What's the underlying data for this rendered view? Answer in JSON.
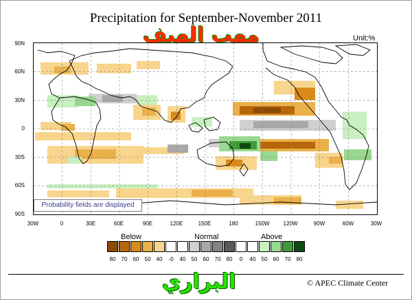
{
  "title": "Precipitation for September-November 2011",
  "unit": "Unit:%",
  "watermark_top": "مهب الهيف",
  "watermark_bottom": "البراري",
  "caption": "Probability fields are displayed",
  "credit": "© APEC Climate Center",
  "lat_labels": [
    "90N",
    "60N",
    "30N",
    "0",
    "30S",
    "60S",
    "90S"
  ],
  "lon_labels": [
    "30W",
    "0",
    "30E",
    "60E",
    "90E",
    "120E",
    "150E",
    "180",
    "150W",
    "120W",
    "90W",
    "60W",
    "30W"
  ],
  "legend": {
    "groups": [
      "Below",
      "Normal",
      "Above"
    ],
    "boxes": [
      {
        "label": "80",
        "color": "#8c4a05"
      },
      {
        "label": "70",
        "color": "#b8660a"
      },
      {
        "label": "60",
        "color": "#d88a1a"
      },
      {
        "label": "50",
        "color": "#eab04a"
      },
      {
        "label": "40",
        "color": "#f8d58c"
      },
      {
        "label": "-0",
        "color": "#ffffff"
      },
      {
        "label": "40",
        "color": "#ffffff"
      },
      {
        "label": "50",
        "color": "#d0d0d0"
      },
      {
        "label": "60",
        "color": "#a8a8a8"
      },
      {
        "label": "70",
        "color": "#848484"
      },
      {
        "label": "80",
        "color": "#5a5a5a"
      },
      {
        "label": "0",
        "color": "#ffffff"
      },
      {
        "label": "40",
        "color": "#ffffff"
      },
      {
        "label": "50",
        "color": "#c8f0c0"
      },
      {
        "label": "60",
        "color": "#98d890"
      },
      {
        "label": "70",
        "color": "#3f9a3a"
      },
      {
        "label": "80",
        "color": "#0f4a10"
      }
    ]
  },
  "colors": {
    "below_light": "#f8d58c",
    "below_mid": "#eab04a",
    "below_dark": "#d88a1a",
    "below_darkest": "#8c4a05",
    "normal_light": "#d0d0d0",
    "normal_mid": "#a8a8a8",
    "normal_dark": "#848484",
    "above_light": "#c8f0c0",
    "above_mid": "#98d890",
    "above_dark": "#3f9a3a",
    "above_darkest": "#0f4a10"
  }
}
